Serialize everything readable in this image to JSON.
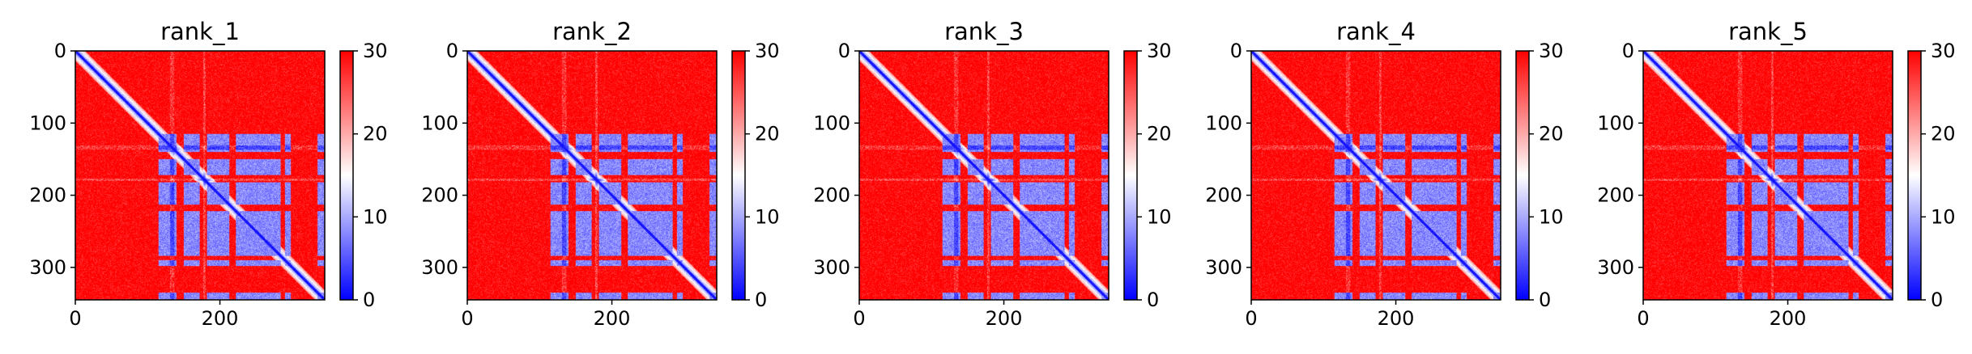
{
  "chart_data": [
    {
      "type": "heatmap",
      "title": "rank_1",
      "x_ticks": [
        "0",
        "200"
      ],
      "y_ticks": [
        "0",
        "100",
        "200",
        "300"
      ],
      "colorbar_ticks": [
        "0",
        "10",
        "20",
        "30"
      ],
      "xlim": [
        0,
        345
      ],
      "ylim": [
        345,
        0
      ],
      "value_range": [
        0,
        30
      ],
      "colormap": [
        "#0000ff",
        "#ffffff",
        "#ff0000"
      ],
      "matrix_size": 345
    },
    {
      "type": "heatmap",
      "title": "rank_2",
      "x_ticks": [
        "0",
        "200"
      ],
      "y_ticks": [
        "0",
        "100",
        "200",
        "300"
      ],
      "colorbar_ticks": [
        "0",
        "10",
        "20",
        "30"
      ],
      "xlim": [
        0,
        345
      ],
      "ylim": [
        345,
        0
      ],
      "value_range": [
        0,
        30
      ],
      "colormap": [
        "#0000ff",
        "#ffffff",
        "#ff0000"
      ],
      "matrix_size": 345
    },
    {
      "type": "heatmap",
      "title": "rank_3",
      "x_ticks": [
        "0",
        "200"
      ],
      "y_ticks": [
        "0",
        "100",
        "200",
        "300"
      ],
      "colorbar_ticks": [
        "0",
        "10",
        "20",
        "30"
      ],
      "xlim": [
        0,
        345
      ],
      "ylim": [
        345,
        0
      ],
      "value_range": [
        0,
        30
      ],
      "colormap": [
        "#0000ff",
        "#ffffff",
        "#ff0000"
      ],
      "matrix_size": 345
    },
    {
      "type": "heatmap",
      "title": "rank_4",
      "x_ticks": [
        "0",
        "200"
      ],
      "y_ticks": [
        "0",
        "100",
        "200",
        "300"
      ],
      "colorbar_ticks": [
        "0",
        "10",
        "20",
        "30"
      ],
      "xlim": [
        0,
        345
      ],
      "ylim": [
        345,
        0
      ],
      "value_range": [
        0,
        30
      ],
      "colormap": [
        "#0000ff",
        "#ffffff",
        "#ff0000"
      ],
      "matrix_size": 345
    },
    {
      "type": "heatmap",
      "title": "rank_5",
      "x_ticks": [
        "0",
        "200"
      ],
      "y_ticks": [
        "0",
        "100",
        "200",
        "300"
      ],
      "colorbar_ticks": [
        "0",
        "10",
        "20",
        "30"
      ],
      "xlim": [
        0,
        345
      ],
      "ylim": [
        345,
        0
      ],
      "value_range": [
        0,
        30
      ],
      "colormap": [
        "#0000ff",
        "#ffffff",
        "#ff0000"
      ],
      "matrix_size": 345
    }
  ]
}
